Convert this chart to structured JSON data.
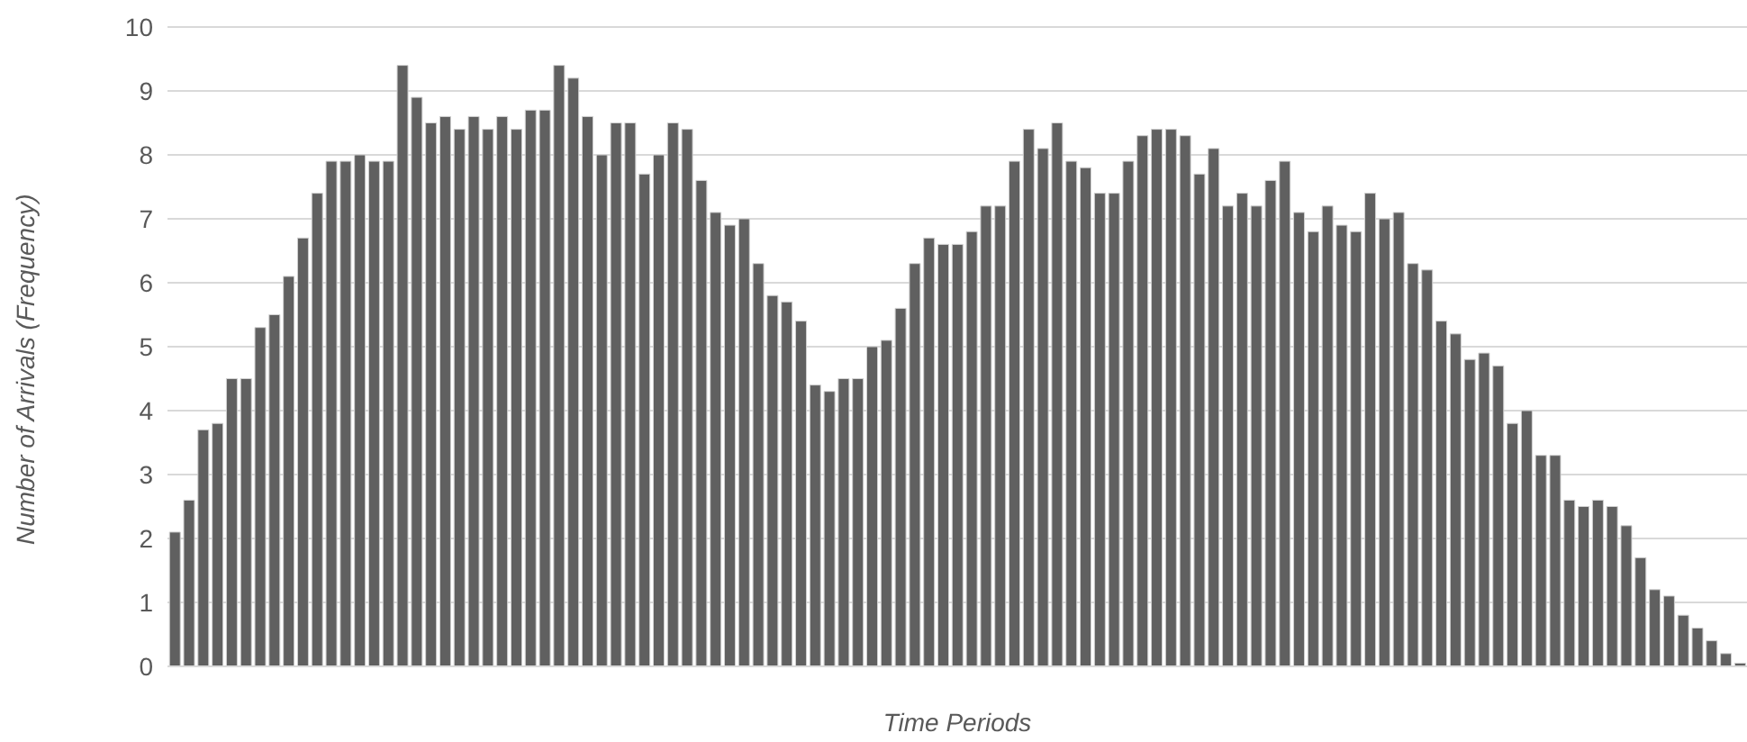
{
  "chart_data": {
    "type": "bar",
    "xlabel": "Time Periods",
    "ylabel": "Number of Arrivals (Frequency)",
    "categories": [
      null,
      null,
      null,
      null,
      null,
      null,
      null,
      null,
      null,
      null,
      null,
      null,
      null,
      null,
      null,
      null,
      null,
      null,
      null,
      null,
      null,
      null,
      null,
      null,
      null,
      null,
      null,
      null,
      null,
      null,
      null,
      null,
      null,
      null,
      null,
      null,
      null,
      null,
      null,
      null,
      null,
      null,
      null,
      null,
      null,
      null,
      null,
      null,
      null,
      null,
      null,
      null,
      null,
      null,
      null,
      null,
      null,
      null,
      null,
      null,
      null,
      null,
      null,
      null,
      null,
      null,
      null,
      null,
      null,
      null,
      null,
      null,
      null,
      null,
      null,
      null,
      null,
      null,
      null,
      null,
      null,
      null,
      null,
      null,
      null,
      null,
      null,
      null,
      null,
      null,
      null,
      null,
      null,
      null,
      null,
      null,
      null,
      null,
      null,
      null,
      null,
      null,
      null,
      null,
      null,
      null,
      null,
      null,
      null,
      null,
      null
    ],
    "values": [
      2.1,
      2.6,
      3.7,
      3.8,
      4.5,
      4.5,
      5.3,
      5.5,
      6.1,
      6.7,
      7.4,
      7.9,
      7.9,
      8.0,
      7.9,
      7.9,
      9.4,
      8.9,
      8.5,
      8.6,
      8.4,
      8.6,
      8.4,
      8.6,
      8.4,
      8.7,
      8.7,
      9.4,
      9.2,
      8.6,
      8.0,
      8.5,
      8.5,
      7.7,
      8.0,
      8.5,
      8.4,
      7.6,
      7.1,
      6.9,
      7.0,
      6.3,
      5.8,
      5.7,
      5.4,
      4.4,
      4.3,
      4.5,
      4.5,
      5.0,
      5.1,
      5.6,
      6.3,
      6.7,
      6.6,
      6.6,
      6.8,
      7.2,
      7.2,
      7.9,
      8.4,
      8.1,
      8.5,
      7.9,
      7.8,
      7.4,
      7.4,
      7.9,
      8.3,
      8.4,
      8.4,
      8.3,
      7.7,
      8.1,
      7.2,
      7.4,
      7.2,
      7.6,
      7.9,
      7.1,
      6.8,
      7.2,
      6.9,
      6.8,
      7.4,
      7.0,
      7.1,
      6.3,
      6.2,
      5.4,
      5.2,
      4.8,
      4.9,
      4.7,
      3.8,
      4.0,
      3.3,
      3.3,
      2.6,
      2.5,
      2.6,
      2.5,
      2.2,
      1.7,
      1.2,
      1.1,
      0.8,
      0.6,
      0.4,
      0.2,
      0.05
    ],
    "color": "#606060",
    "ylim": [
      0,
      10
    ],
    "yticks": [
      0,
      1,
      2,
      3,
      4,
      5,
      6,
      7,
      8,
      9,
      10
    ],
    "grid": "y",
    "tick_labels": "y"
  }
}
